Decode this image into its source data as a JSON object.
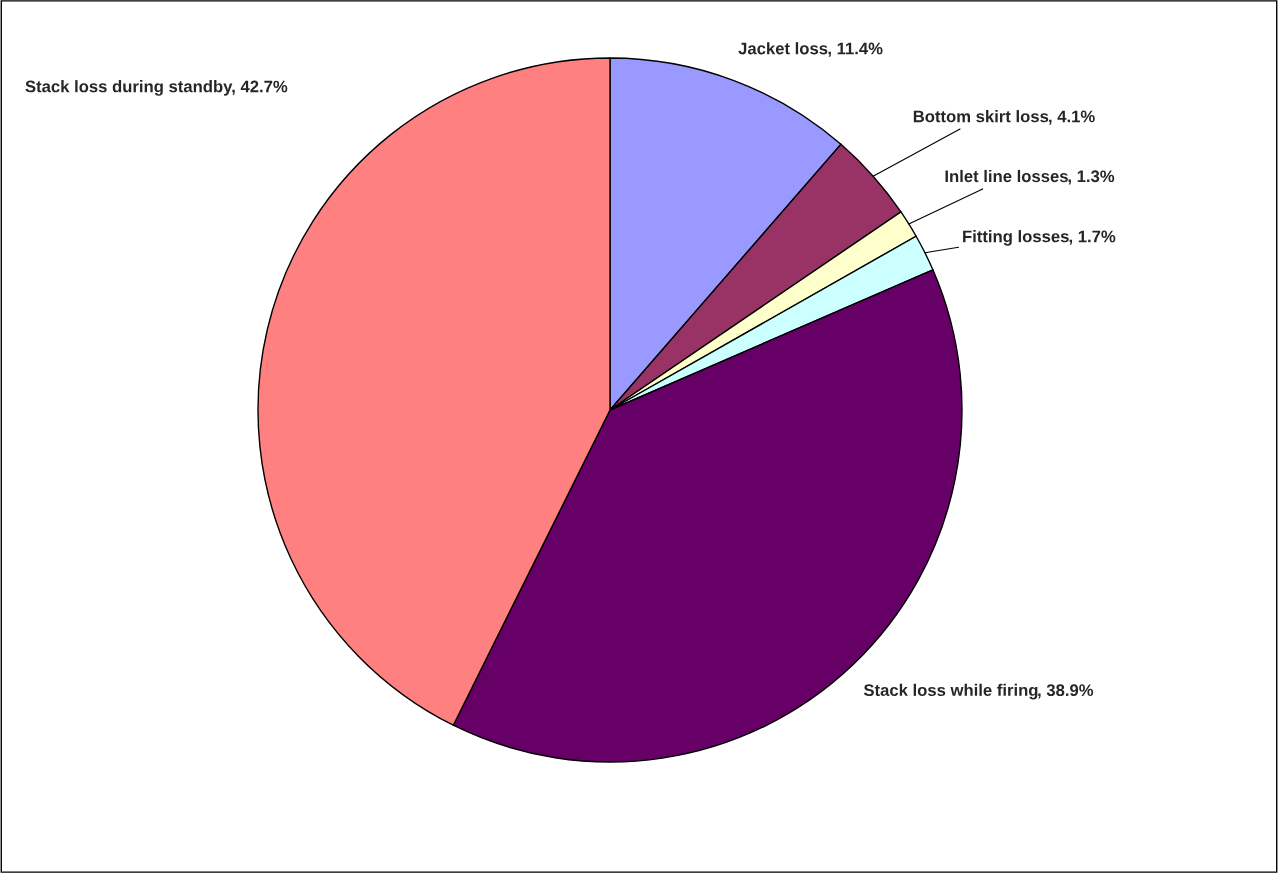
{
  "chart_data": {
    "type": "pie",
    "categories": [
      "Jacket loss",
      "Bottom skirt loss",
      "Inlet line losses",
      "Fitting losses",
      "Stack loss while firing",
      "Stack loss during standby"
    ],
    "values": [
      11.4,
      4.1,
      1.3,
      1.7,
      38.9,
      42.7
    ],
    "value_labels": [
      ", 11.4%",
      ", 4.1%",
      ", 1.3%",
      ", 1.7%",
      ", 38.9%",
      ", 42.7%"
    ],
    "colors": [
      "#9999ff",
      "#993366",
      "#ffffcc",
      "#ccffff",
      "#660066",
      "#ff8080"
    ],
    "legend": false
  }
}
